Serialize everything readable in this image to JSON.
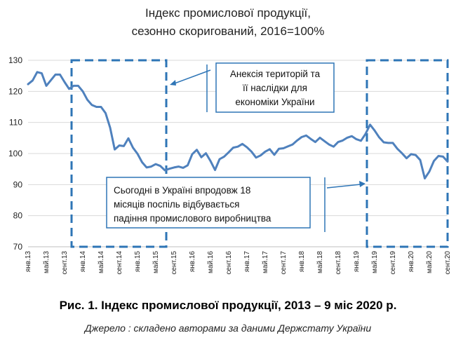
{
  "chart_data": {
    "type": "line",
    "title_line1": "Індекс промислової продукції,",
    "title_line2": "сезонно скоригований, 2016=100%",
    "ylim": [
      70,
      130
    ],
    "yticks": [
      70,
      80,
      90,
      100,
      110,
      120,
      130
    ],
    "grid": "horizontal",
    "x_labels": [
      "янв.13",
      "май.13",
      "сент.13",
      "янв.14",
      "май.14",
      "сент.14",
      "янв.15",
      "май.15",
      "сент.15",
      "янв.16",
      "май.16",
      "сент.16",
      "янв.17",
      "май.17",
      "сент.17",
      "янв.18",
      "май.18",
      "сент.18",
      "янв.19",
      "май.19",
      "сент.19",
      "янв.20",
      "май.20",
      "сент.20"
    ],
    "series": [
      {
        "color": "#4f81bd",
        "values": [
          122.3,
          123.5,
          126.2,
          125.8,
          121.8,
          123.6,
          125.4,
          125.4,
          123.0,
          120.8,
          121.8,
          121.8,
          120.0,
          117.3,
          115.6,
          115.0,
          115.0,
          113.0,
          108.3,
          101.3,
          102.6,
          102.4,
          104.9,
          101.9,
          99.9,
          97.2,
          95.5,
          95.8,
          96.6,
          96.0,
          94.6,
          95.1,
          95.5,
          95.8,
          95.4,
          96.2,
          99.8,
          101.2,
          98.8,
          100.1,
          97.6,
          94.7,
          98.2,
          99.0,
          100.4,
          101.9,
          102.2,
          103.1,
          102.0,
          100.6,
          98.7,
          99.4,
          100.6,
          101.4,
          99.6,
          101.5,
          101.7,
          102.3,
          102.9,
          104.2,
          105.3,
          105.8,
          104.7,
          103.7,
          105.1,
          104.0,
          102.9,
          102.2,
          103.7,
          104.2,
          105.1,
          105.6,
          104.6,
          104.1,
          106.3,
          109.3,
          107.4,
          105.2,
          103.6,
          103.4,
          103.4,
          101.5,
          100.1,
          98.5,
          99.8,
          99.5,
          97.9,
          92.0,
          94.2,
          97.6,
          99.2,
          99.0,
          97.4
        ]
      }
    ],
    "annotations": [
      {
        "lines": [
          "Анексія територій та",
          "її наслідки для",
          "економіки України"
        ]
      },
      {
        "lines": [
          "Сьогодні в Україні впродовж 18",
          "місяців поспіль відбувається",
          "падіння промислового виробництва"
        ]
      }
    ]
  },
  "caption": "Рис. 1. Індекс промислової продукції, 2013 – 9 міс 2020 р.",
  "source": "Джерело : складено авторами за даними Держстату України"
}
